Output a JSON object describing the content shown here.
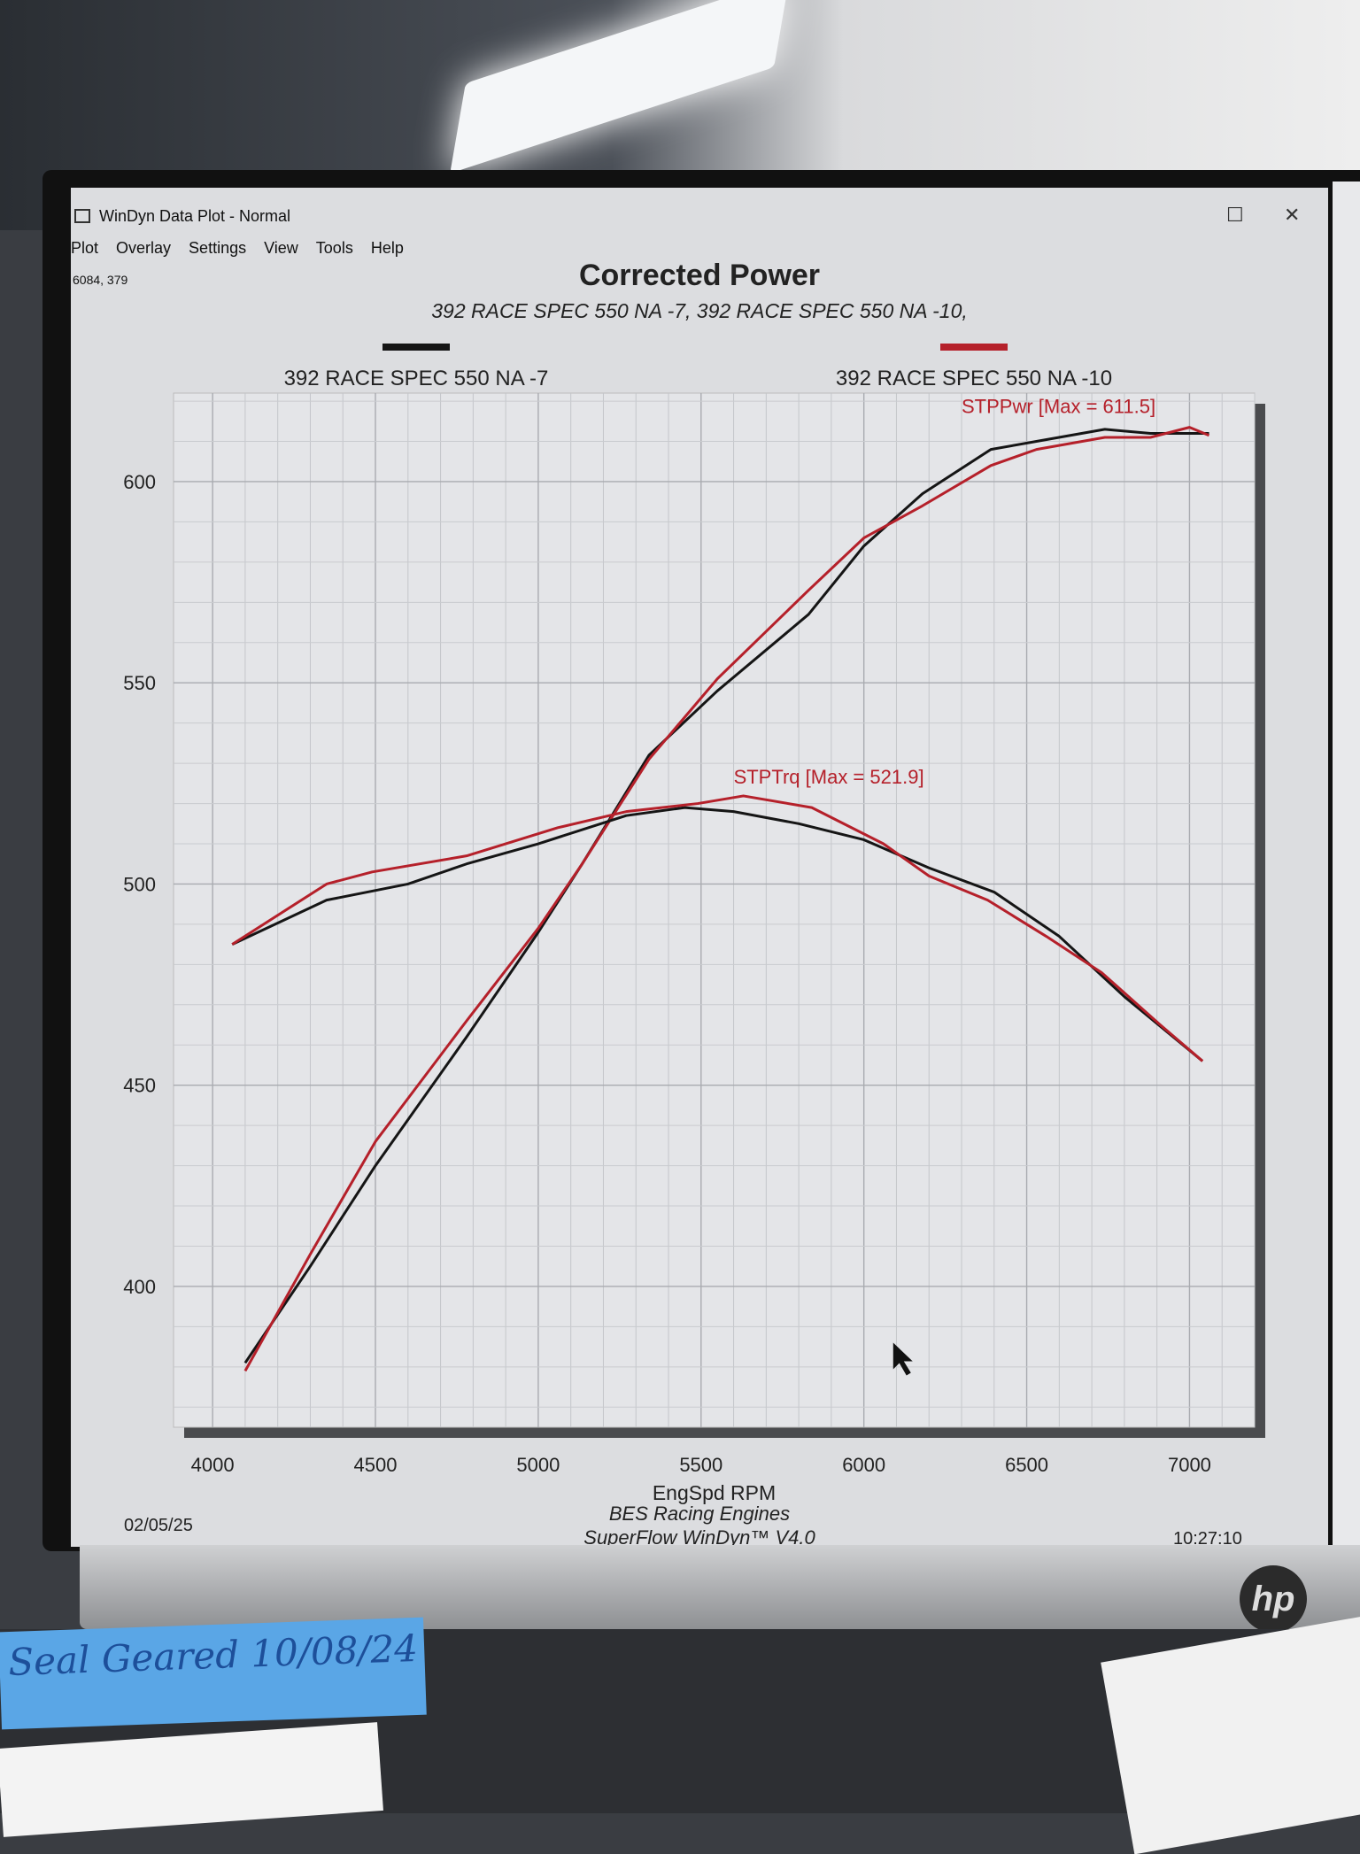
{
  "window": {
    "title": "WinDyn Data Plot - Normal",
    "menu": [
      "Plot",
      "Overlay",
      "Settings",
      "View",
      "Tools",
      "Help"
    ],
    "cursor_readout": "6084, 379",
    "maximize_icon": "maximize-icon",
    "close_icon": "close-icon"
  },
  "footer": {
    "date": "02/05/25",
    "time": "10:27:10",
    "company": "BES Racing Engines",
    "software": "SuperFlow WinDyn™ V4.0"
  },
  "desk": {
    "note_text": "Seal Geared 10/08/24",
    "monitor_brand": "hp"
  },
  "chart_data": {
    "type": "line",
    "title": "Corrected Power",
    "subtitle": "392 RACE SPEC 550 NA -7, 392 RACE SPEC 550 NA -10,",
    "xlabel": "EngSpd RPM",
    "ylabel": "",
    "xlim": [
      3880,
      7200
    ],
    "ylim": [
      365,
      622
    ],
    "x_ticks": [
      4000,
      4500,
      5000,
      5500,
      6000,
      6500,
      7000
    ],
    "y_ticks": [
      400,
      450,
      500,
      550,
      600
    ],
    "grid": true,
    "legend_placement": "top",
    "annotations": [
      "STPPwr [Max = 611.5]",
      "STPTrq [Max = 521.9]"
    ],
    "series": [
      {
        "name": "392 RACE SPEC 550 NA -7",
        "color": "#151515",
        "quantity": "STPPwr",
        "x": [
          4100,
          4300,
          4500,
          4780,
          5000,
          5135,
          5340,
          5550,
          5830,
          6000,
          6180,
          6390,
          6530,
          6740,
          6880,
          7060
        ],
        "y": [
          381,
          405,
          430,
          462,
          488,
          505,
          532,
          548,
          567,
          584,
          597,
          608,
          610,
          613,
          612,
          612
        ]
      },
      {
        "name": "392 RACE SPEC 550 NA -10",
        "color": "#b5202a",
        "quantity": "STPPwr",
        "x": [
          4100,
          4300,
          4500,
          4780,
          5000,
          5135,
          5340,
          5550,
          5830,
          6000,
          6180,
          6390,
          6530,
          6740,
          6880,
          7000,
          7060
        ],
        "y": [
          379,
          408,
          436,
          466,
          489,
          505,
          531,
          551,
          573,
          586,
          594,
          604,
          608,
          611,
          611,
          613.5,
          611.5
        ]
      },
      {
        "name": "392 RACE SPEC 550 NA -7",
        "color": "#151515",
        "quantity": "STPTrq",
        "x": [
          4060,
          4350,
          4600,
          4780,
          5000,
          5270,
          5450,
          5600,
          5800,
          6000,
          6200,
          6400,
          6600,
          6800,
          7040
        ],
        "y": [
          485,
          496,
          500,
          505,
          510,
          517,
          519,
          518,
          515,
          511,
          504,
          498,
          487,
          472,
          456
        ]
      },
      {
        "name": "392 RACE SPEC 550 NA -10",
        "color": "#b5202a",
        "quantity": "STPTrq",
        "x": [
          4060,
          4350,
          4490,
          4780,
          5060,
          5270,
          5490,
          5630,
          5840,
          6060,
          6200,
          6380,
          6560,
          6730,
          6910,
          7040
        ],
        "y": [
          485,
          500,
          503,
          507,
          514,
          518,
          520,
          521.9,
          519,
          510,
          502,
          496,
          487,
          478,
          465,
          456
        ]
      }
    ],
    "legend": [
      {
        "label": "392 RACE SPEC 550 NA -7",
        "color": "#151515"
      },
      {
        "label": "392 RACE SPEC 550 NA -10",
        "color": "#b5202a"
      }
    ]
  }
}
